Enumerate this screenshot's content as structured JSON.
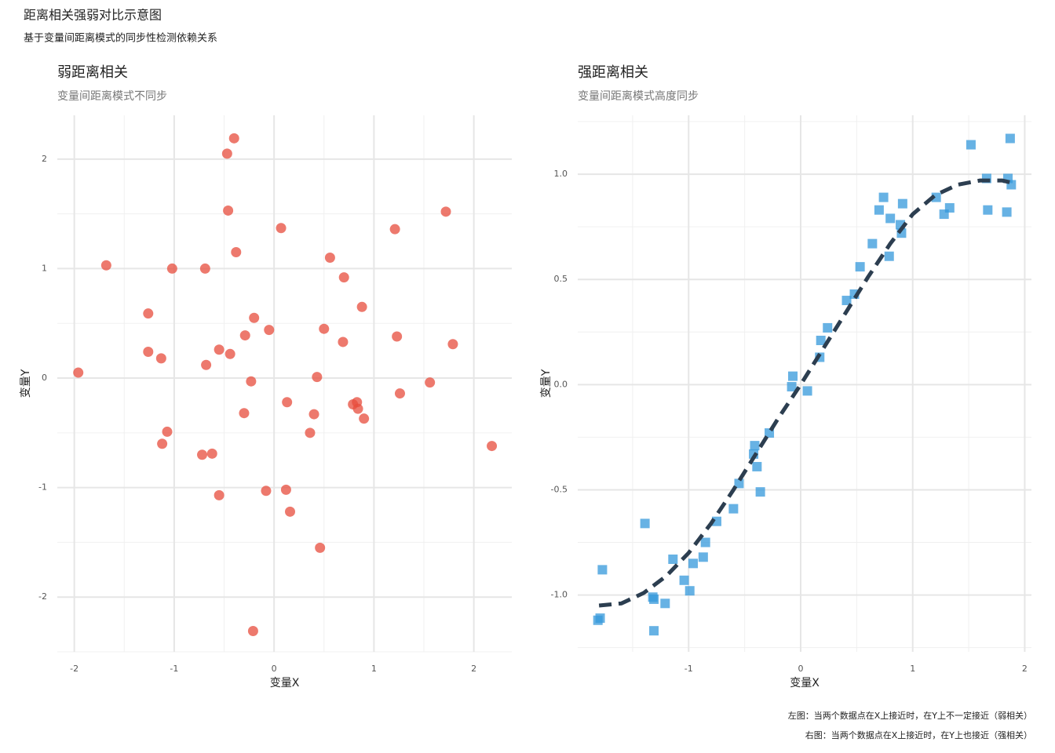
{
  "title": "距离相关强弱对比示意图",
  "subtitle": "基于变量间距离模式的同步性检测依赖关系",
  "captions": [
    "左图：当两个数据点在X上接近时，在Y上不一定接近（弱相关）",
    "右图：当两个数据点在X上接近时，在Y上也接近（强相关）"
  ],
  "chart_data": [
    {
      "type": "scatter",
      "title": "弱距离相关",
      "subtitle": "变量间距离模式不同步",
      "x_label": "变量X",
      "y_label": "变量Y",
      "color": "#e74c3c",
      "marker": "circle",
      "grid": true,
      "xlim": [
        -2.17,
        2.38
      ],
      "ylim": [
        -2.5,
        2.4
      ],
      "xticks": [
        -2,
        -1,
        0,
        1,
        2
      ],
      "yticks": [
        -2,
        -1,
        0,
        1,
        2
      ],
      "x": [
        -0.4,
        -0.47,
        -0.46,
        1.72,
        0.07,
        1.21,
        -0.38,
        0.56,
        -1.68,
        -1.02,
        -0.69,
        0.7,
        0.88,
        -1.26,
        -0.2,
        0.5,
        -0.05,
        -0.29,
        1.23,
        0.69,
        1.79,
        -0.55,
        -1.26,
        -0.44,
        -1.13,
        -0.68,
        -1.96,
        0.43,
        -0.23,
        1.56,
        1.26,
        0.13,
        0.79,
        0.83,
        0.84,
        -0.3,
        0.4,
        0.9,
        -1.07,
        0.36,
        -1.12,
        2.18,
        -0.62,
        -0.72,
        -0.08,
        0.12,
        -0.55,
        0.16,
        0.46,
        -0.21
      ],
      "values": [
        2.19,
        2.05,
        1.53,
        1.52,
        1.37,
        1.36,
        1.15,
        1.1,
        1.03,
        1.0,
        1.0,
        0.92,
        0.65,
        0.59,
        0.55,
        0.45,
        0.44,
        0.39,
        0.38,
        0.33,
        0.31,
        0.26,
        0.24,
        0.22,
        0.18,
        0.12,
        0.05,
        0.01,
        -0.03,
        -0.04,
        -0.14,
        -0.22,
        -0.24,
        -0.22,
        -0.28,
        -0.32,
        -0.33,
        -0.37,
        -0.49,
        -0.5,
        -0.6,
        -0.62,
        -0.69,
        -0.7,
        -1.03,
        -1.02,
        -1.07,
        -1.22,
        -1.55,
        -2.31
      ]
    },
    {
      "type": "scatter",
      "title": "强距离相关",
      "subtitle": "变量间距离模式高度同步",
      "x_label": "变量X",
      "y_label": "变量Y",
      "color": "#3498db",
      "marker": "square",
      "grid": true,
      "xlim": [
        -1.99,
        2.06
      ],
      "ylim": [
        -1.27,
        1.28
      ],
      "xticks": [
        -1,
        0,
        1,
        2
      ],
      "yticks": [
        {
          "value": -1,
          "label": "-1.0"
        },
        -0.5,
        {
          "value": 0,
          "label": "0.0"
        },
        0.5,
        {
          "value": 1,
          "label": "1.0"
        }
      ],
      "x": [
        1.52,
        1.87,
        1.66,
        1.85,
        1.88,
        0.74,
        0.91,
        1.21,
        0.7,
        1.33,
        1.67,
        1.84,
        1.28,
        0.8,
        0.89,
        0.9,
        0.64,
        0.79,
        0.53,
        0.48,
        0.41,
        0.24,
        0.18,
        0.17,
        -0.07,
        -0.08,
        0.06,
        -0.28,
        -0.41,
        -0.42,
        -0.39,
        -0.55,
        -0.36,
        -0.6,
        -1.39,
        -0.75,
        -0.85,
        -1.77,
        -1.14,
        -0.87,
        -0.96,
        -1.04,
        -0.99,
        -1.32,
        -1.31,
        -1.21,
        -1.31,
        -1.79,
        -1.81
      ],
      "values": [
        1.14,
        1.17,
        0.98,
        0.98,
        0.95,
        0.89,
        0.86,
        0.89,
        0.83,
        0.84,
        0.83,
        0.82,
        0.81,
        0.79,
        0.76,
        0.72,
        0.67,
        0.61,
        0.56,
        0.43,
        0.4,
        0.27,
        0.21,
        0.13,
        0.04,
        -0.01,
        -0.03,
        -0.23,
        -0.29,
        -0.33,
        -0.39,
        -0.47,
        -0.51,
        -0.59,
        -0.66,
        -0.65,
        -0.75,
        -0.88,
        -0.83,
        -0.82,
        -0.85,
        -0.93,
        -0.98,
        -1.01,
        -1.02,
        -1.04,
        -1.17,
        -1.11,
        -1.12
      ],
      "trend": {
        "color": "#2c3e50",
        "x": [
          -1.8,
          -1.6,
          -1.4,
          -1.2,
          -1.0,
          -0.8,
          -0.6,
          -0.4,
          -0.2,
          0,
          0.2,
          0.4,
          0.6,
          0.8,
          1.0,
          1.2,
          1.4,
          1.6,
          1.8,
          1.88
        ],
        "values": [
          -1.05,
          -1.04,
          -0.99,
          -0.91,
          -0.8,
          -0.66,
          -0.5,
          -0.33,
          -0.16,
          0.0,
          0.17,
          0.34,
          0.51,
          0.67,
          0.81,
          0.9,
          0.95,
          0.97,
          0.97,
          0.96
        ]
      }
    }
  ]
}
